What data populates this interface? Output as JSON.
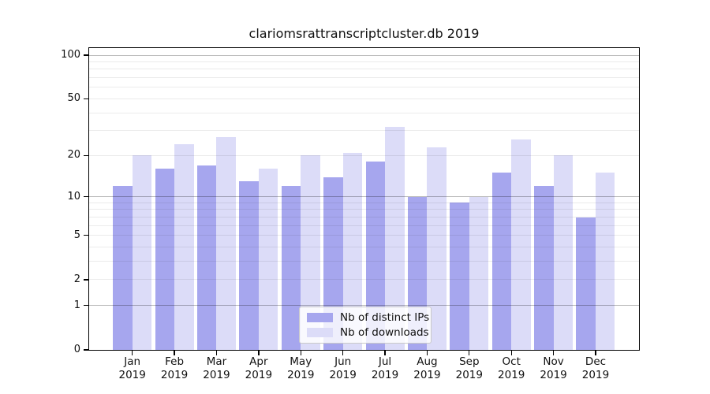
{
  "title": "clariomsrattranscriptcluster.db 2019",
  "chart_data": {
    "type": "bar",
    "title": "clariomsrattranscriptcluster.db 2019",
    "year_label": "2019",
    "categories": [
      "Jan",
      "Feb",
      "Mar",
      "Apr",
      "May",
      "Jun",
      "Jul",
      "Aug",
      "Sep",
      "Oct",
      "Nov",
      "Dec"
    ],
    "series": [
      {
        "key": "distinct-ips",
        "name": "Nb of distinct IPs",
        "color": "#a6a6ee",
        "values": [
          12,
          16,
          17,
          13,
          12,
          14,
          18,
          10,
          9,
          15,
          12,
          7
        ]
      },
      {
        "key": "downloads",
        "name": "Nb of downloads",
        "color": "#dcdcf8",
        "values": [
          20,
          24,
          27,
          16,
          20,
          21,
          32,
          23,
          10,
          26,
          20,
          15
        ]
      }
    ],
    "xlabel": "",
    "ylabel": "",
    "yscale": "log1p",
    "ylim": [
      0,
      112
    ],
    "yticks": [
      0,
      1,
      2,
      5,
      10,
      20,
      50,
      100
    ],
    "major_gridlines": [
      1,
      10,
      100
    ],
    "minor_gridlines": [
      2,
      3,
      4,
      5,
      6,
      7,
      8,
      9,
      20,
      30,
      40,
      50,
      60,
      70,
      80,
      90
    ],
    "grid": "on",
    "legend_position": "inside-bottom-center"
  },
  "legend": {
    "items": [
      {
        "label": "Nb of distinct IPs"
      },
      {
        "label": "Nb of downloads"
      }
    ]
  },
  "colors": {
    "bar_distinct_ips": "#a6a6ee",
    "bar_downloads": "#dcdcf8",
    "minor_grid": "rgba(0,0,0,0.08)",
    "major_grid": "rgba(0,0,0,0.27)",
    "frame": "#000000",
    "text": "#111111"
  }
}
